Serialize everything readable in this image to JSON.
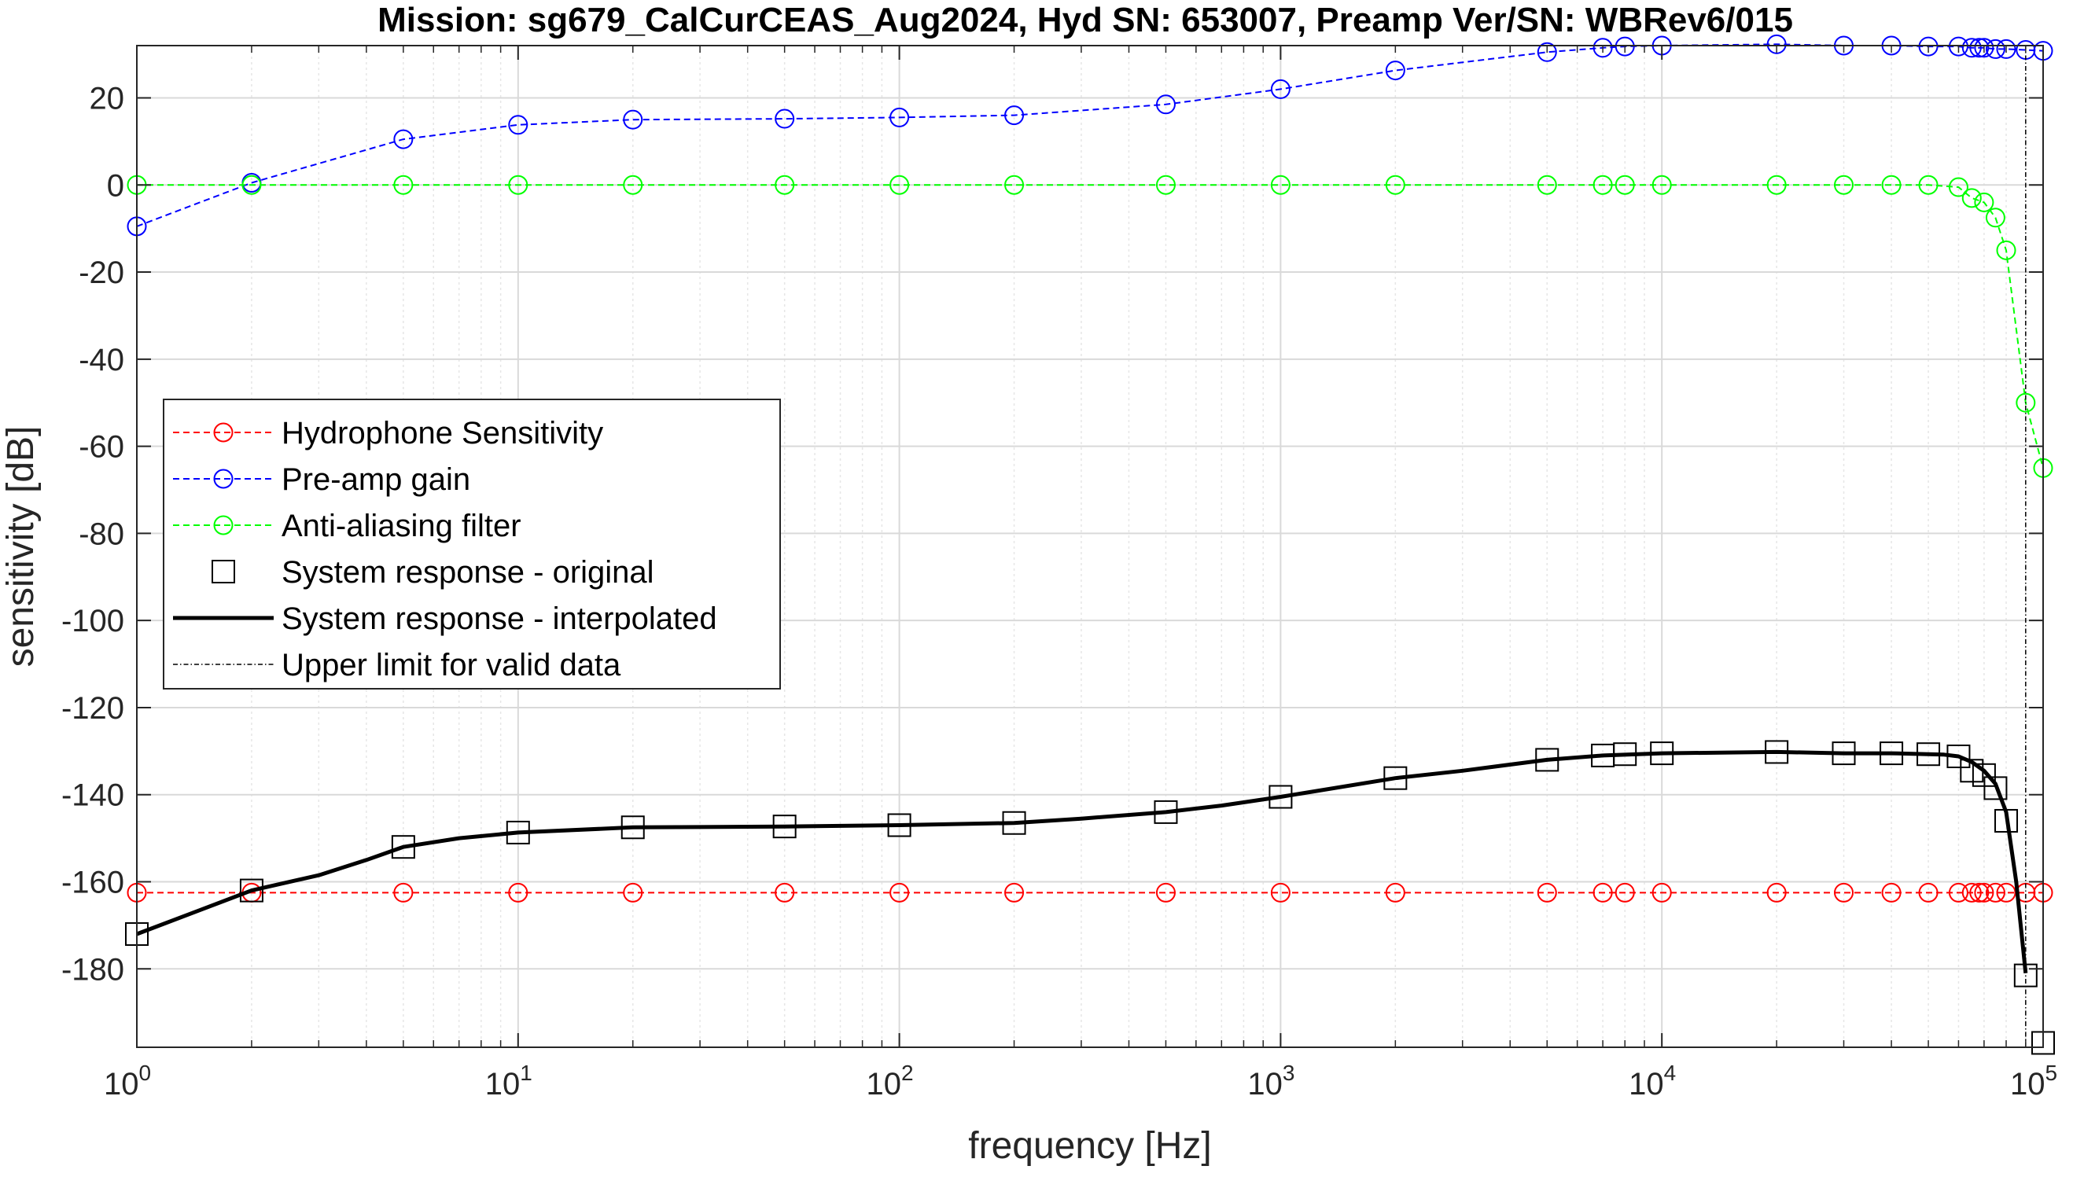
{
  "chart_data": {
    "type": "line",
    "title": "Mission: sg679_CalCurCEAS_Aug2024, Hyd SN: 653007, Preamp Ver/SN: WBRev6/015",
    "xlabel": "frequency [Hz]",
    "ylabel": "sensitivity [dB]",
    "xscale": "log",
    "xlim": [
      1,
      100000
    ],
    "ylim": [
      -198,
      32
    ],
    "grid": true,
    "legend_position": "left-middle",
    "x_tick_labels": [
      {
        "base": "10",
        "exp": "0"
      },
      {
        "base": "10",
        "exp": "1"
      },
      {
        "base": "10",
        "exp": "2"
      },
      {
        "base": "10",
        "exp": "3"
      },
      {
        "base": "10",
        "exp": "4"
      },
      {
        "base": "10",
        "exp": "5"
      }
    ],
    "y_ticks": [
      20,
      0,
      -20,
      -40,
      -60,
      -80,
      -100,
      -120,
      -140,
      -160,
      -180
    ],
    "y_tick_labels": [
      "20",
      "0",
      "-20",
      "-40",
      "-60",
      "-80",
      "-100",
      "-120",
      "-140",
      "-160",
      "-180"
    ],
    "series": [
      {
        "name": "Hydrophone Sensitivity",
        "style": "dashed-circle",
        "color": "#ff0000",
        "x": [
          1,
          2,
          5,
          10,
          20,
          50,
          100,
          200,
          500,
          1000,
          2000,
          5000,
          7000,
          8000,
          10000,
          20000,
          30000,
          40000,
          50000,
          60000,
          65000,
          68000,
          70000,
          75000,
          80000,
          90000,
          100000
        ],
        "y": [
          -162.5,
          -162.5,
          -162.5,
          -162.5,
          -162.5,
          -162.5,
          -162.5,
          -162.5,
          -162.5,
          -162.5,
          -162.5,
          -162.5,
          -162.5,
          -162.5,
          -162.5,
          -162.5,
          -162.5,
          -162.5,
          -162.5,
          -162.5,
          -162.5,
          -162.5,
          -162.5,
          -162.5,
          -162.5,
          -162.5,
          -162.5
        ]
      },
      {
        "name": "Pre-amp gain",
        "style": "dashed-circle",
        "color": "#0000ff",
        "x": [
          1,
          2,
          5,
          10,
          20,
          50,
          100,
          200,
          500,
          1000,
          2000,
          5000,
          7000,
          8000,
          10000,
          20000,
          30000,
          40000,
          50000,
          60000,
          65000,
          68000,
          70000,
          75000,
          80000,
          90000,
          100000
        ],
        "y": [
          -9.5,
          0.5,
          10.5,
          13.8,
          15,
          15.2,
          15.5,
          16,
          18.5,
          22,
          26.3,
          30.5,
          31.5,
          31.8,
          32,
          32.3,
          32,
          32,
          31.8,
          31.8,
          31.5,
          31.5,
          31.5,
          31.2,
          31.2,
          31,
          30.8
        ]
      },
      {
        "name": "Anti-aliasing filter",
        "style": "dashed-circle",
        "color": "#00ff00",
        "x": [
          1,
          2,
          5,
          10,
          20,
          50,
          100,
          200,
          500,
          1000,
          2000,
          5000,
          7000,
          8000,
          10000,
          20000,
          30000,
          40000,
          50000,
          60000,
          65000,
          70000,
          75000,
          80000,
          90000,
          100000
        ],
        "y": [
          0,
          0,
          0,
          0,
          0,
          0,
          0,
          0,
          0,
          0,
          0,
          0,
          0,
          0,
          0,
          0,
          0,
          0,
          0,
          -0.5,
          -3,
          -4,
          -7.5,
          -15,
          -50,
          -65
        ]
      },
      {
        "name": "System response - original",
        "style": "square-markers",
        "color": "#000000",
        "x": [
          1,
          2,
          5,
          10,
          20,
          50,
          100,
          200,
          500,
          1000,
          2000,
          5000,
          7000,
          8000,
          10000,
          20000,
          30000,
          40000,
          50000,
          60000,
          65000,
          70000,
          75000,
          80000,
          90000,
          100000
        ],
        "y": [
          -172,
          -162,
          -152,
          -148.7,
          -147.5,
          -147.3,
          -147,
          -146.5,
          -144,
          -140.5,
          -136.2,
          -132,
          -131,
          -130.7,
          -130.5,
          -130.2,
          -130.5,
          -130.5,
          -130.7,
          -131.2,
          -134.5,
          -135.5,
          -138.5,
          -146,
          -181.5,
          -197
        ]
      },
      {
        "name": "System response - interpolated",
        "style": "solid-thick",
        "color": "#000000",
        "x": [
          1,
          2,
          3,
          4,
          5,
          7,
          10,
          20,
          50,
          100,
          200,
          300,
          500,
          700,
          1000,
          2000,
          3000,
          5000,
          7000,
          10000,
          20000,
          30000,
          40000,
          50000,
          55000,
          60000,
          65000,
          70000,
          75000,
          80000,
          85000,
          90000
        ],
        "y": [
          -172,
          -162,
          -158.5,
          -155,
          -152,
          -150,
          -148.7,
          -147.5,
          -147.3,
          -147,
          -146.5,
          -145.5,
          -144,
          -142.5,
          -140.5,
          -136.2,
          -134.5,
          -132,
          -131,
          -130.5,
          -130.2,
          -130.5,
          -130.5,
          -130.7,
          -130.8,
          -131.2,
          -132.5,
          -134.5,
          -137.5,
          -144,
          -160,
          -181
        ]
      },
      {
        "name": "Upper limit for valid data",
        "style": "dash-dot-vertical",
        "color": "#000000",
        "x": [
          90000,
          90000
        ],
        "y": [
          -198,
          32
        ]
      }
    ]
  }
}
